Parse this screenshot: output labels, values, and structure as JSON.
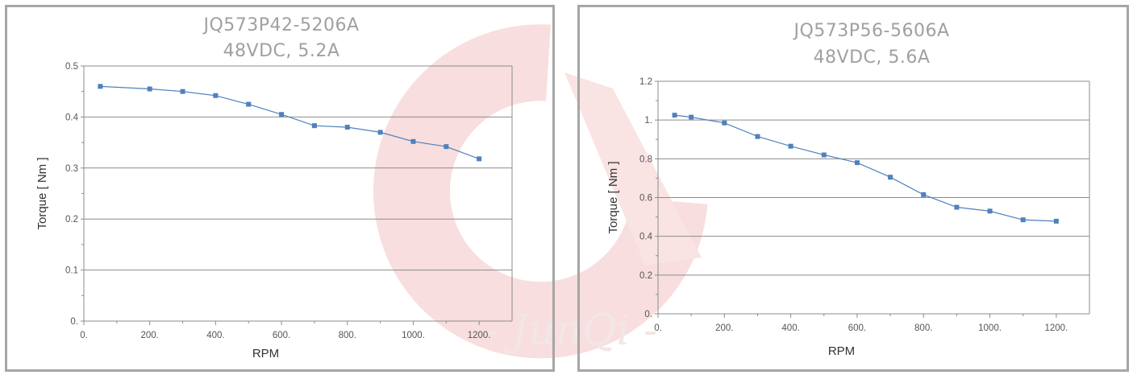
{
  "watermark": {
    "text": "- JunQi -",
    "color": "#f6d6d6"
  },
  "chart_data": [
    {
      "type": "line",
      "title": "JQ573P42-5206A",
      "subtitle": "48VDC, 5.2A",
      "xlabel": "RPM",
      "ylabel": "Torque [ Nm ]",
      "xlim": [
        0,
        1300
      ],
      "ylim": [
        0,
        0.5
      ],
      "x_ticks": [
        0,
        200,
        400,
        600,
        800,
        1000,
        1200
      ],
      "x_tick_labels": [
        "0.",
        "200.",
        "400.",
        "600.",
        "800.",
        "1000.",
        "1200."
      ],
      "y_ticks": [
        0,
        0.1,
        0.2,
        0.3,
        0.4,
        0.5
      ],
      "y_tick_labels": [
        "0.",
        "0.1",
        "0.2",
        "0.3",
        "0.4",
        "0.5"
      ],
      "grid": true,
      "series_color": "#4f81bd",
      "x": [
        50,
        200,
        300,
        400,
        500,
        600,
        700,
        800,
        900,
        1000,
        1100,
        1200
      ],
      "y": [
        0.46,
        0.455,
        0.45,
        0.442,
        0.425,
        0.405,
        0.383,
        0.38,
        0.37,
        0.352,
        0.342,
        0.318
      ]
    },
    {
      "type": "line",
      "title": "JQ573P56-5606A",
      "subtitle": "48VDC,  5.6A",
      "xlabel": "RPM",
      "ylabel": "Torque [ Nm ]",
      "xlim": [
        0,
        1300
      ],
      "ylim": [
        0,
        1.2
      ],
      "x_ticks": [
        0,
        200,
        400,
        600,
        800,
        1000,
        1200
      ],
      "x_tick_labels": [
        "0.",
        "200.",
        "400.",
        "600.",
        "800.",
        "1000.",
        "1200."
      ],
      "y_ticks": [
        0,
        0.2,
        0.4,
        0.6,
        0.8,
        1,
        1.2
      ],
      "y_tick_labels": [
        "0.",
        "0.2",
        "0.4",
        "0.6",
        "0.8",
        "1.",
        "1.2"
      ],
      "grid": true,
      "series_color": "#4f81bd",
      "x": [
        50,
        100,
        200,
        300,
        400,
        500,
        600,
        700,
        800,
        900,
        1000,
        1100,
        1200
      ],
      "y": [
        1.025,
        1.015,
        0.985,
        0.915,
        0.865,
        0.82,
        0.78,
        0.705,
        0.615,
        0.55,
        0.53,
        0.485,
        0.478
      ]
    }
  ]
}
